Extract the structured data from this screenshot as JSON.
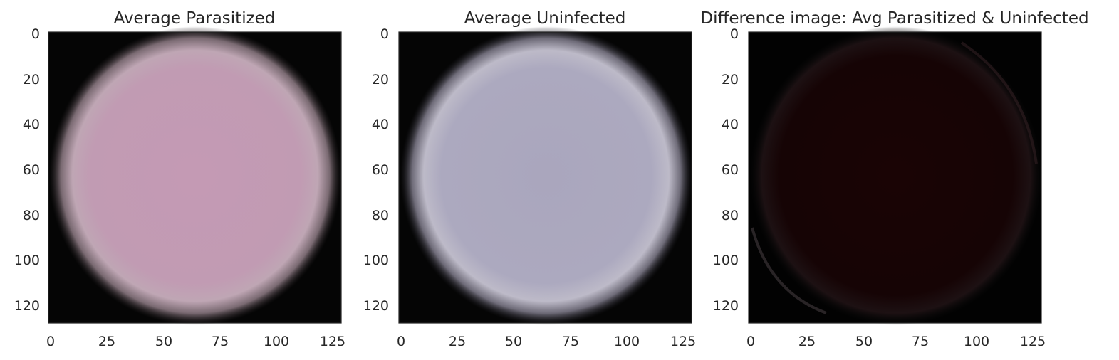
{
  "chart_data": [
    {
      "type": "image",
      "title": "Average Parasitized",
      "xlim": [
        0,
        128
      ],
      "ylim": [
        128,
        0
      ],
      "xticks": [
        0,
        25,
        50,
        75,
        100,
        125
      ],
      "yticks": [
        0,
        20,
        40,
        60,
        80,
        100,
        120
      ],
      "xtick_labels": [
        "0",
        "25",
        "50",
        "75",
        "100",
        "125"
      ],
      "ytick_labels": [
        "0",
        "20",
        "40",
        "60",
        "80",
        "100",
        "120"
      ],
      "grid": false,
      "dominant_color": "#c49ab4",
      "background_color": "#050505"
    },
    {
      "type": "image",
      "title": "Average Uninfected",
      "xlim": [
        0,
        128
      ],
      "ylim": [
        128,
        0
      ],
      "xticks": [
        0,
        25,
        50,
        75,
        100,
        125
      ],
      "yticks": [
        0,
        20,
        40,
        60,
        80,
        100,
        120
      ],
      "xtick_labels": [
        "0",
        "25",
        "50",
        "75",
        "100",
        "125"
      ],
      "ytick_labels": [
        "0",
        "20",
        "40",
        "60",
        "80",
        "100",
        "120"
      ],
      "grid": false,
      "dominant_color": "#aaa6be",
      "background_color": "#050505"
    },
    {
      "type": "image",
      "title": "Difference image: Avg Parasitized & Uninfected",
      "xlim": [
        0,
        128
      ],
      "ylim": [
        128,
        0
      ],
      "xticks": [
        0,
        25,
        50,
        75,
        100,
        125
      ],
      "yticks": [
        0,
        20,
        40,
        60,
        80,
        100,
        120
      ],
      "xtick_labels": [
        "0",
        "25",
        "50",
        "75",
        "100",
        "125"
      ],
      "ytick_labels": [
        "0",
        "20",
        "40",
        "60",
        "80",
        "100",
        "120"
      ],
      "grid": false,
      "dominant_color": "#1a0404",
      "background_color": "#020202"
    }
  ]
}
